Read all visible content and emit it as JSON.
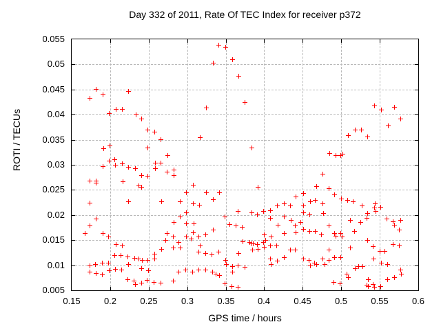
{
  "colors": {
    "marker": "#ff0000",
    "grid": "#b8b8b8",
    "axis": "#000000",
    "background": "#ffffff"
  },
  "chart_data": {
    "type": "scatter",
    "title": "Day 332 of 2011, Rate Of TEC Index for receiver p372",
    "xlabel": "GPS time / hours",
    "ylabel": "ROTI / TECUs",
    "xlim": [
      0.15,
      0.6
    ],
    "ylim": [
      0.005,
      0.055
    ],
    "xticks": [
      0.15,
      0.2,
      0.25,
      0.3,
      0.35,
      0.4,
      0.45,
      0.5,
      0.55,
      0.6
    ],
    "xtick_labels": [
      "0.15",
      "0.2",
      "0.25",
      "0.3",
      "0.35",
      "0.4",
      "0.45",
      "0.5",
      "0.55",
      "0.6"
    ],
    "yticks": [
      0.005,
      0.01,
      0.015,
      0.02,
      0.025,
      0.03,
      0.035,
      0.04,
      0.045,
      0.05,
      0.055
    ],
    "ytick_labels": [
      "0.005",
      "0.01",
      "0.015",
      "0.02",
      "0.025",
      "0.03",
      "0.035",
      "0.04",
      "0.045",
      "0.05",
      "0.055"
    ],
    "grid": true,
    "legend": "none",
    "marker": {
      "shape": "plus",
      "color": "#ff0000",
      "size": 7
    },
    "series": [
      {
        "name": "ROTI",
        "points": [
          [
            0.174,
            0.0433
          ],
          [
            0.182,
            0.0451
          ],
          [
            0.191,
            0.044
          ],
          [
            0.199,
            0.0402
          ],
          [
            0.208,
            0.0411
          ],
          [
            0.216,
            0.0411
          ],
          [
            0.224,
            0.0447
          ],
          [
            0.234,
            0.04
          ],
          [
            0.241,
            0.0392
          ],
          [
            0.325,
            0.0414
          ],
          [
            0.334,
            0.0502
          ],
          [
            0.341,
            0.0539
          ],
          [
            0.35,
            0.0534
          ],
          [
            0.359,
            0.0509
          ],
          [
            0.367,
            0.0476
          ],
          [
            0.375,
            0.0424
          ],
          [
            0.543,
            0.0417
          ],
          [
            0.552,
            0.0409
          ],
          [
            0.569,
            0.0415
          ],
          [
            0.577,
            0.0391
          ],
          [
            0.249,
            0.037
          ],
          [
            0.258,
            0.0366
          ],
          [
            0.266,
            0.035
          ],
          [
            0.192,
            0.0332
          ],
          [
            0.2,
            0.0338
          ],
          [
            0.249,
            0.0334
          ],
          [
            0.275,
            0.0319
          ],
          [
            0.191,
            0.0297
          ],
          [
            0.199,
            0.0307
          ],
          [
            0.206,
            0.031
          ],
          [
            0.207,
            0.03
          ],
          [
            0.216,
            0.0302
          ],
          [
            0.224,
            0.0295
          ],
          [
            0.233,
            0.0293
          ],
          [
            0.259,
            0.0304
          ],
          [
            0.266,
            0.0303
          ],
          [
            0.259,
            0.0292
          ],
          [
            0.274,
            0.0286
          ],
          [
            0.283,
            0.029
          ],
          [
            0.283,
            0.0279
          ],
          [
            0.241,
            0.0279
          ],
          [
            0.249,
            0.0278
          ],
          [
            0.174,
            0.0268
          ],
          [
            0.182,
            0.0268
          ],
          [
            0.182,
            0.0264
          ],
          [
            0.217,
            0.0267
          ],
          [
            0.237,
            0.0258
          ],
          [
            0.241,
            0.0255
          ],
          [
            0.224,
            0.0227
          ],
          [
            0.174,
            0.0224
          ],
          [
            0.267,
            0.0226
          ],
          [
            0.291,
            0.0227
          ],
          [
            0.317,
            0.0355
          ],
          [
            0.384,
            0.0334
          ],
          [
            0.308,
            0.026
          ],
          [
            0.392,
            0.0256
          ],
          [
            0.299,
            0.0244
          ],
          [
            0.325,
            0.0245
          ],
          [
            0.342,
            0.0244
          ],
          [
            0.334,
            0.0231
          ],
          [
            0.308,
            0.0222
          ],
          [
            0.316,
            0.022
          ],
          [
            0.417,
            0.0219
          ],
          [
            0.426,
            0.0223
          ],
          [
            0.434,
            0.0219
          ],
          [
            0.441,
            0.0236
          ],
          [
            0.561,
            0.0378
          ],
          [
            0.518,
            0.0369
          ],
          [
            0.526,
            0.0369
          ],
          [
            0.509,
            0.0359
          ],
          [
            0.534,
            0.0356
          ],
          [
            0.485,
            0.0323
          ],
          [
            0.493,
            0.0319
          ],
          [
            0.499,
            0.0319
          ],
          [
            0.502,
            0.0321
          ],
          [
            0.476,
            0.0282
          ],
          [
            0.468,
            0.0257
          ],
          [
            0.484,
            0.0253
          ],
          [
            0.451,
            0.0243
          ],
          [
            0.491,
            0.024
          ],
          [
            0.5,
            0.0232
          ],
          [
            0.508,
            0.023
          ],
          [
            0.515,
            0.0227
          ],
          [
            0.46,
            0.0227
          ],
          [
            0.466,
            0.0229
          ],
          [
            0.476,
            0.0223
          ],
          [
            0.527,
            0.0219
          ],
          [
            0.544,
            0.0223
          ],
          [
            0.182,
            0.0192
          ],
          [
            0.174,
            0.0178
          ],
          [
            0.167,
            0.0164
          ],
          [
            0.191,
            0.0164
          ],
          [
            0.198,
            0.0156
          ],
          [
            0.291,
            0.0197
          ],
          [
            0.283,
            0.0186
          ],
          [
            0.274,
            0.0164
          ],
          [
            0.282,
            0.0156
          ],
          [
            0.272,
            0.0149
          ],
          [
            0.289,
            0.0145
          ],
          [
            0.282,
            0.0135
          ],
          [
            0.291,
            0.0134
          ],
          [
            0.267,
            0.0132
          ],
          [
            0.208,
            0.0141
          ],
          [
            0.216,
            0.0138
          ],
          [
            0.206,
            0.0119
          ],
          [
            0.214,
            0.0119
          ],
          [
            0.223,
            0.0117
          ],
          [
            0.232,
            0.0114
          ],
          [
            0.237,
            0.0112
          ],
          [
            0.242,
            0.011
          ],
          [
            0.249,
            0.011
          ],
          [
            0.258,
            0.0113
          ],
          [
            0.258,
            0.0122
          ],
          [
            0.181,
            0.0102
          ],
          [
            0.19,
            0.0104
          ],
          [
            0.198,
            0.0105
          ],
          [
            0.174,
            0.0099
          ],
          [
            0.224,
            0.0101
          ],
          [
            0.199,
            0.0089
          ],
          [
            0.207,
            0.0092
          ],
          [
            0.215,
            0.0091
          ],
          [
            0.174,
            0.0086
          ],
          [
            0.182,
            0.0084
          ],
          [
            0.19,
            0.0081
          ],
          [
            0.241,
            0.0093
          ],
          [
            0.25,
            0.0089
          ],
          [
            0.223,
            0.0072
          ],
          [
            0.231,
            0.0068
          ],
          [
            0.241,
            0.0065
          ],
          [
            0.248,
            0.007
          ],
          [
            0.233,
            0.0062
          ],
          [
            0.257,
            0.0066
          ],
          [
            0.266,
            0.0064
          ],
          [
            0.282,
            0.0069
          ],
          [
            0.289,
            0.0087
          ],
          [
            0.299,
            0.0205
          ],
          [
            0.309,
            0.0182
          ],
          [
            0.299,
            0.0183
          ],
          [
            0.308,
            0.0165
          ],
          [
            0.299,
            0.0157
          ],
          [
            0.305,
            0.0153
          ],
          [
            0.315,
            0.0156
          ],
          [
            0.324,
            0.0161
          ],
          [
            0.334,
            0.017
          ],
          [
            0.349,
            0.0196
          ],
          [
            0.355,
            0.0181
          ],
          [
            0.363,
            0.0179
          ],
          [
            0.371,
            0.0176
          ],
          [
            0.366,
            0.0207
          ],
          [
            0.384,
            0.0204
          ],
          [
            0.391,
            0.0201
          ],
          [
            0.399,
            0.0207
          ],
          [
            0.408,
            0.0209
          ],
          [
            0.408,
            0.0194
          ],
          [
            0.426,
            0.0196
          ],
          [
            0.435,
            0.0189
          ],
          [
            0.418,
            0.018
          ],
          [
            0.44,
            0.0178
          ],
          [
            0.447,
            0.0185
          ],
          [
            0.441,
            0.0165
          ],
          [
            0.426,
            0.0164
          ],
          [
            0.4,
            0.0161
          ],
          [
            0.402,
            0.015
          ],
          [
            0.409,
            0.0156
          ],
          [
            0.372,
            0.0147
          ],
          [
            0.381,
            0.0145
          ],
          [
            0.383,
            0.0143
          ],
          [
            0.386,
            0.0143
          ],
          [
            0.391,
            0.0141
          ],
          [
            0.399,
            0.0145
          ],
          [
            0.4,
            0.0136
          ],
          [
            0.392,
            0.0132
          ],
          [
            0.385,
            0.0131
          ],
          [
            0.408,
            0.0138
          ],
          [
            0.416,
            0.0139
          ],
          [
            0.434,
            0.0131
          ],
          [
            0.44,
            0.013
          ],
          [
            0.317,
            0.0138
          ],
          [
            0.315,
            0.0126
          ],
          [
            0.324,
            0.0123
          ],
          [
            0.332,
            0.0121
          ],
          [
            0.341,
            0.0126
          ],
          [
            0.367,
            0.0124
          ],
          [
            0.35,
            0.011
          ],
          [
            0.351,
            0.0102
          ],
          [
            0.408,
            0.0112
          ],
          [
            0.417,
            0.0108
          ],
          [
            0.409,
            0.0101
          ],
          [
            0.426,
            0.0115
          ],
          [
            0.359,
            0.0098
          ],
          [
            0.366,
            0.0099
          ],
          [
            0.375,
            0.0096
          ],
          [
            0.359,
            0.0087
          ],
          [
            0.298,
            0.009
          ],
          [
            0.307,
            0.0087
          ],
          [
            0.315,
            0.009
          ],
          [
            0.324,
            0.0091
          ],
          [
            0.333,
            0.0087
          ],
          [
            0.337,
            0.0083
          ],
          [
            0.342,
            0.0079
          ],
          [
            0.349,
            0.0063
          ],
          [
            0.358,
            0.0057
          ],
          [
            0.366,
            0.0056
          ],
          [
            0.451,
            0.0219
          ],
          [
            0.543,
            0.0214
          ],
          [
            0.551,
            0.0215
          ],
          [
            0.545,
            0.0207
          ],
          [
            0.451,
            0.0205
          ],
          [
            0.459,
            0.0201
          ],
          [
            0.477,
            0.0203
          ],
          [
            0.533,
            0.0194
          ],
          [
            0.534,
            0.0203
          ],
          [
            0.512,
            0.019
          ],
          [
            0.525,
            0.0185
          ],
          [
            0.559,
            0.0192
          ],
          [
            0.567,
            0.0187
          ],
          [
            0.569,
            0.018
          ],
          [
            0.577,
            0.019
          ],
          [
            0.484,
            0.0179
          ],
          [
            0.451,
            0.0171
          ],
          [
            0.459,
            0.0168
          ],
          [
            0.466,
            0.0167
          ],
          [
            0.474,
            0.016
          ],
          [
            0.491,
            0.0163
          ],
          [
            0.499,
            0.0163
          ],
          [
            0.493,
            0.0158
          ],
          [
            0.501,
            0.0157
          ],
          [
            0.517,
            0.0167
          ],
          [
            0.575,
            0.017
          ],
          [
            0.534,
            0.015
          ],
          [
            0.567,
            0.0142
          ],
          [
            0.575,
            0.0138
          ],
          [
            0.512,
            0.0135
          ],
          [
            0.541,
            0.0137
          ],
          [
            0.484,
            0.013
          ],
          [
            0.55,
            0.0127
          ],
          [
            0.557,
            0.0127
          ],
          [
            0.491,
            0.0116
          ],
          [
            0.499,
            0.0115
          ],
          [
            0.451,
            0.0113
          ],
          [
            0.458,
            0.011
          ],
          [
            0.476,
            0.0112
          ],
          [
            0.484,
            0.011
          ],
          [
            0.542,
            0.0113
          ],
          [
            0.465,
            0.0105
          ],
          [
            0.479,
            0.0102
          ],
          [
            0.46,
            0.0099
          ],
          [
            0.468,
            0.0101
          ],
          [
            0.552,
            0.0104
          ],
          [
            0.56,
            0.0102
          ],
          [
            0.523,
            0.0098
          ],
          [
            0.528,
            0.0098
          ],
          [
            0.518,
            0.0094
          ],
          [
            0.577,
            0.009
          ],
          [
            0.578,
            0.0082
          ],
          [
            0.569,
            0.0076
          ],
          [
            0.56,
            0.0072
          ],
          [
            0.507,
            0.0082
          ],
          [
            0.509,
            0.0075
          ],
          [
            0.49,
            0.0066
          ],
          [
            0.498,
            0.0063
          ],
          [
            0.535,
            0.0071
          ],
          [
            0.533,
            0.0061
          ],
          [
            0.541,
            0.0062
          ],
          [
            0.535,
            0.0057
          ],
          [
            0.543,
            0.0056
          ],
          [
            0.551,
            0.0057
          ]
        ]
      }
    ]
  }
}
